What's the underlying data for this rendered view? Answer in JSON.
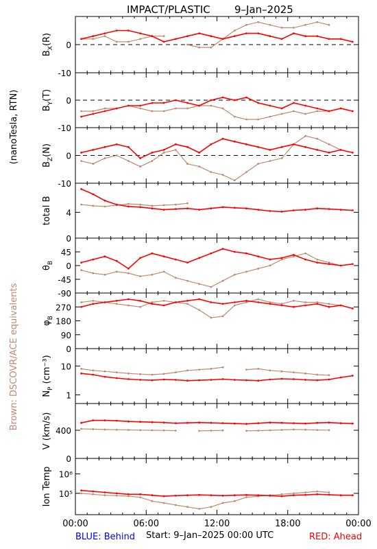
{
  "title_left": "IMPACT/PLASTIC",
  "title_right": "9–Jan–2025",
  "left_axis_label": "(nanoTesla, RTN)",
  "brown_note": "Brown: DSCOVR/ACE equivalents",
  "footer": {
    "blue": "BLUE: Behind",
    "start": "Start:   9–Jan–2025 00:00 UTC",
    "red": "RED: Ahead"
  },
  "colors": {
    "red": "#ff0000",
    "brown": "#c08a70",
    "blue": "#0000ff",
    "axis": "#000000"
  },
  "chart_data": {
    "type": "line",
    "x_tick_labels": [
      "00:00",
      "06:00",
      "12:00",
      "18:00",
      "00:00"
    ],
    "xlim_hours": [
      0,
      24
    ],
    "panels": [
      {
        "key": "bx",
        "label": "BX(R)",
        "label_main": "B",
        "label_sub": "X",
        "label_tail": "(R)",
        "ylim": [
          -10,
          10
        ],
        "yticks": [
          -10,
          0
        ],
        "zero_line": true,
        "series": [
          {
            "color_key": "red",
            "values": [
              2,
              3,
              4,
              5,
              5,
              4,
              3,
              1,
              2,
              3,
              4,
              3,
              2,
              3,
              4,
              4,
              3,
              2,
              4,
              3,
              3,
              2,
              2,
              1
            ]
          },
          {
            "color_key": "brown",
            "values": [
              2,
              2,
              3,
              1,
              1,
              2,
              3,
              3,
              null,
              0,
              -1,
              -1,
              2,
              5,
              7,
              8,
              7,
              6,
              6,
              7,
              8,
              7,
              null,
              null
            ]
          }
        ]
      },
      {
        "key": "by",
        "label": "BY(T)",
        "label_main": "B",
        "label_sub": "Y",
        "label_tail": "(T)",
        "ylim": [
          -10,
          10
        ],
        "yticks": [
          -10,
          0
        ],
        "zero_line": true,
        "series": [
          {
            "color_key": "red",
            "values": [
              -6,
              -5,
              -4,
              -3,
              -2,
              -2,
              -1,
              -1,
              0,
              -1,
              -2,
              0,
              1,
              0,
              1,
              -1,
              -2,
              -3,
              -1,
              -2,
              -3,
              -4,
              -3,
              -4
            ]
          },
          {
            "color_key": "brown",
            "values": [
              -4,
              -4,
              -3,
              -3,
              -2,
              -3,
              -4,
              -4,
              -3,
              -3,
              -2,
              -2,
              -3,
              -6,
              -7,
              -7,
              -6,
              -5,
              -4,
              -5,
              -4,
              -4,
              null,
              null
            ]
          }
        ]
      },
      {
        "key": "bz",
        "label": "BZ(N)",
        "label_main": "B",
        "label_sub": "Z",
        "label_tail": "(N)",
        "ylim": [
          -10,
          10
        ],
        "yticks": [
          -10,
          0
        ],
        "zero_line": true,
        "series": [
          {
            "color_key": "red",
            "values": [
              1,
              2,
              3,
              4,
              3,
              -1,
              1,
              2,
              4,
              3,
              1,
              4,
              6,
              5,
              4,
              3,
              2,
              3,
              4,
              3,
              2,
              1,
              2,
              1
            ]
          },
          {
            "color_key": "brown",
            "values": [
              -2,
              -3,
              -1,
              0,
              -2,
              -4,
              -2,
              1,
              2,
              -3,
              -4,
              -6,
              -7,
              -9,
              -6,
              -3,
              -2,
              -1,
              4,
              7,
              6,
              4,
              2,
              null
            ]
          }
        ]
      },
      {
        "key": "btot",
        "label": "total B",
        "label_main": "total B",
        "label_sub": "",
        "label_tail": "",
        "ylim": [
          0,
          8.5
        ],
        "yticks": [
          0,
          4
        ],
        "zero_line": false,
        "series": [
          {
            "color_key": "red",
            "values": [
              7.6,
              6.8,
              5.8,
              5.2,
              4.9,
              4.8,
              4.6,
              4.4,
              4.5,
              4.6,
              4.4,
              4.6,
              4.8,
              4.7,
              4.6,
              4.4,
              4.2,
              4.1,
              4.3,
              4.4,
              4.6,
              4.5,
              4.4,
              4.3
            ]
          },
          {
            "color_key": "brown",
            "values": [
              5.2,
              5.0,
              4.9,
              5.1,
              5.3,
              5.2,
              5.0,
              5.1,
              5.2,
              5.4,
              null,
              null,
              null,
              null,
              null,
              null,
              null,
              null,
              null,
              null,
              null,
              null,
              null,
              null
            ]
          }
        ]
      },
      {
        "key": "theta",
        "label": "θB",
        "label_main": "θ",
        "label_sub": "B",
        "label_tail": "",
        "ylim": [
          -90,
          90
        ],
        "yticks": [
          -90,
          -45,
          0,
          45
        ],
        "zero_line": false,
        "series": [
          {
            "color_key": "red",
            "values": [
              10,
              20,
              30,
              15,
              -10,
              25,
              40,
              30,
              20,
              10,
              25,
              40,
              55,
              45,
              40,
              30,
              20,
              25,
              35,
              20,
              10,
              5,
              0,
              5
            ]
          },
          {
            "color_key": "brown",
            "values": [
              -15,
              -25,
              -30,
              -20,
              -25,
              -35,
              -30,
              -20,
              -40,
              -50,
              -60,
              -70,
              -50,
              -30,
              -20,
              -10,
              0,
              20,
              30,
              40,
              20,
              10,
              0,
              null
            ]
          }
        ]
      },
      {
        "key": "phi",
        "label": "φB",
        "label_main": "φ",
        "label_sub": "B",
        "label_tail": "",
        "ylim": [
          0,
          360
        ],
        "yticks": [
          0,
          90,
          180,
          270
        ],
        "zero_line": false,
        "series": [
          {
            "color_key": "red",
            "values": [
              270,
              290,
              300,
              310,
              320,
              310,
              290,
              280,
              300,
              310,
              320,
              300,
              290,
              300,
              310,
              300,
              290,
              280,
              270,
              280,
              290,
              270,
              280,
              260
            ]
          },
          {
            "color_key": "brown",
            "values": [
              300,
              310,
              300,
              290,
              280,
              270,
              300,
              310,
              300,
              290,
              250,
              200,
              210,
              280,
              300,
              320,
              300,
              290,
              310,
              300,
              300,
              290,
              280,
              null
            ]
          }
        ]
      },
      {
        "key": "np",
        "label": "NP (cm⁻³)",
        "label_main": "N",
        "label_sub": "P",
        "label_tail": " (cm⁻³)",
        "ylim": [
          0.5,
          40
        ],
        "log": true,
        "yticks": [
          1,
          10
        ],
        "zero_line": false,
        "series": [
          {
            "color_key": "red",
            "values": [
              5.5,
              5.0,
              4.2,
              3.8,
              3.5,
              3.3,
              3.2,
              3.4,
              3.3,
              3.1,
              3.2,
              3.3,
              3.5,
              3.3,
              3.2,
              3.1,
              3.4,
              3.6,
              3.5,
              3.3,
              3.2,
              3.4,
              4.0,
              4.6
            ]
          },
          {
            "color_key": "brown",
            "values": [
              8,
              7,
              6.5,
              6,
              5.5,
              5.2,
              5.0,
              5.3,
              6,
              7,
              7.5,
              8,
              9,
              null,
              7.5,
              8,
              7,
              6.5,
              6,
              5.5,
              5,
              4.8,
              null,
              null
            ]
          }
        ]
      },
      {
        "key": "v",
        "label": "V (km/s)",
        "label_main": "V (km/s)",
        "label_sub": "",
        "label_tail": "",
        "ylim": [
          0,
          780
        ],
        "yticks": [
          0,
          400
        ],
        "zero_line": false,
        "series": [
          {
            "color_key": "red",
            "values": [
              505,
              540,
              540,
              535,
              525,
              520,
              515,
              510,
              500,
              505,
              510,
              505,
              500,
              495,
              490,
              500,
              510,
              505,
              500,
              495,
              505,
              510,
              500,
              495
            ]
          },
          {
            "color_key": "brown",
            "values": [
              420,
              415,
              410,
              408,
              405,
              402,
              400,
              398,
              395,
              null,
              392,
              395,
              398,
              null,
              392,
              395,
              400,
              405,
              410,
              408,
              404,
              402,
              null,
              null
            ]
          }
        ]
      },
      {
        "key": "temp",
        "label": "Ion Temp",
        "label_main": "Ion Temp",
        "label_sub": "",
        "label_tail": "",
        "ylim_log10": [
          3.9,
          6.8
        ],
        "log": true,
        "yticks_label": [
          "10⁵",
          "10⁶"
        ],
        "ytick_exp": [
          5,
          6
        ],
        "zero_line": false,
        "series": [
          {
            "color_key": "red",
            "values_log10": [
              5.15,
              5.1,
              5.05,
              5.0,
              4.95,
              4.95,
              4.9,
              4.85,
              4.88,
              4.9,
              4.92,
              4.9,
              4.88,
              4.9,
              4.92,
              4.9,
              4.88,
              4.85,
              4.9,
              4.92,
              4.95,
              4.93,
              4.9,
              4.9
            ]
          },
          {
            "color_key": "brown",
            "values_log10": [
              5.0,
              4.95,
              4.9,
              4.88,
              4.85,
              4.8,
              4.6,
              4.5,
              4.4,
              4.3,
              4.2,
              4.3,
              4.5,
              4.6,
              4.8,
              4.85,
              4.9,
              4.95,
              5.0,
              5.05,
              5.1,
              5.05,
              null,
              null
            ]
          }
        ]
      }
    ]
  }
}
